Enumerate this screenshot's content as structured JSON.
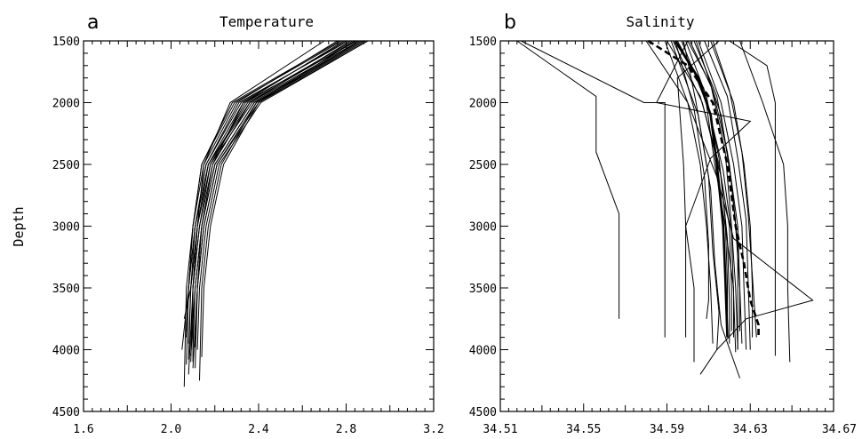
{
  "figure": {
    "ylabel": "Depth"
  },
  "chart_data": [
    {
      "type": "line",
      "panel_letter": "a",
      "title": "Temperature",
      "xlabel": "",
      "ylabel": "Depth",
      "xlim": [
        1.6,
        3.2
      ],
      "ylim": [
        1500,
        4500
      ],
      "y_inverted": true,
      "grid": false,
      "x_ticks": [
        "1.6",
        "2.0",
        "2.4",
        "2.8",
        "3.2"
      ],
      "y_ticks": [
        "1500",
        "2000",
        "2500",
        "3000",
        "3500",
        "4000",
        "4500"
      ],
      "depth": [
        1500,
        2000,
        2500,
        3000,
        3500,
        4000
      ],
      "line_color": "#000000",
      "series": [
        {
          "values": [
            2.88,
            2.38,
            2.2,
            2.14,
            2.11,
            2.09
          ],
          "max_depth": 4050
        },
        {
          "values": [
            2.84,
            2.35,
            2.17,
            2.12,
            2.09,
            2.06
          ],
          "max_depth": 3750
        },
        {
          "values": [
            2.8,
            2.32,
            2.16,
            2.11,
            2.08,
            2.05
          ],
          "max_depth": 4000
        },
        {
          "values": [
            2.86,
            2.4,
            2.21,
            2.15,
            2.12,
            2.1
          ],
          "max_depth": 4150
        },
        {
          "values": [
            2.76,
            2.3,
            2.15,
            2.1,
            2.07,
            2.06
          ],
          "max_depth": 4300
        },
        {
          "values": [
            2.82,
            2.36,
            2.19,
            2.13,
            2.1,
            2.08
          ],
          "max_depth": 4200
        },
        {
          "values": [
            2.9,
            2.41,
            2.22,
            2.16,
            2.13,
            2.12
          ],
          "max_depth": 4000
        },
        {
          "values": [
            2.78,
            2.29,
            2.14,
            2.1,
            2.08,
            2.07
          ],
          "max_depth": 3900
        },
        {
          "values": [
            2.87,
            2.37,
            2.18,
            2.12,
            2.1,
            2.1
          ],
          "max_depth": 4100
        },
        {
          "values": [
            2.85,
            2.33,
            2.17,
            2.11,
            2.09,
            2.08
          ],
          "max_depth": 3950
        },
        {
          "values": [
            2.7,
            2.27,
            2.15,
            2.12,
            2.1,
            2.09
          ],
          "max_depth": 4050
        },
        {
          "values": [
            2.89,
            2.39,
            2.23,
            2.17,
            2.14,
            2.13
          ],
          "max_depth": 4250
        },
        {
          "values": [
            2.83,
            2.34,
            2.18,
            2.13,
            2.1,
            2.09
          ],
          "max_depth": 4100
        },
        {
          "values": [
            2.81,
            2.31,
            2.16,
            2.11,
            2.08,
            2.07
          ],
          "max_depth": 3850
        },
        {
          "values": [
            2.88,
            2.38,
            2.2,
            2.14,
            2.12,
            2.11
          ],
          "max_depth": 4150
        },
        {
          "values": [
            2.79,
            2.33,
            2.19,
            2.14,
            2.11,
            2.1
          ],
          "max_depth": 4000
        },
        {
          "values": [
            2.86,
            2.36,
            2.17,
            2.12,
            2.09,
            2.08
          ],
          "max_depth": 4080
        },
        {
          "values": [
            2.84,
            2.39,
            2.21,
            2.15,
            2.12,
            2.11
          ],
          "max_depth": 3980
        },
        {
          "values": [
            2.77,
            2.28,
            2.14,
            2.1,
            2.08,
            2.07
          ],
          "max_depth": 4120
        },
        {
          "values": [
            2.9,
            2.4,
            2.24,
            2.18,
            2.15,
            2.14
          ],
          "max_depth": 4060
        }
      ]
    },
    {
      "type": "line",
      "panel_letter": "b",
      "title": "Salinity",
      "xlabel": "",
      "ylabel": "",
      "xlim": [
        34.51,
        34.67
      ],
      "ylim": [
        1500,
        4500
      ],
      "y_inverted": true,
      "grid": false,
      "x_ticks": [
        "34.51",
        "34.55",
        "34.59",
        "34.63",
        "34.67"
      ],
      "y_ticks": [
        "1500",
        "2000",
        "2500",
        "3000",
        "3500",
        "4000",
        "4500"
      ],
      "line_color": "#000000",
      "series": [
        {
          "points": [
            [
              34.518,
              1500
            ],
            [
              34.556,
              1950
            ],
            [
              34.556,
              2400
            ],
            [
              34.567,
              2900
            ],
            [
              34.567,
              3750
            ]
          ]
        },
        {
          "points": [
            [
              34.52,
              1500
            ],
            [
              34.579,
              2000
            ],
            [
              34.589,
              2000
            ],
            [
              34.589,
              3500
            ],
            [
              34.589,
              3900
            ]
          ]
        },
        {
          "points": [
            [
              34.6,
              1500
            ],
            [
              34.585,
              2000
            ],
            [
              34.63,
              2150
            ],
            [
              34.611,
              2450
            ],
            [
              34.599,
              3000
            ],
            [
              34.603,
              3500
            ],
            [
              34.603,
              4100
            ]
          ]
        },
        {
          "points": [
            [
              34.595,
              1500
            ],
            [
              34.608,
              1900
            ],
            [
              34.613,
              2500
            ],
            [
              34.618,
              3000
            ],
            [
              34.622,
              3500
            ],
            [
              34.622,
              3900
            ]
          ]
        },
        {
          "points": [
            [
              34.6,
              1500
            ],
            [
              34.611,
              1850
            ],
            [
              34.618,
              2400
            ],
            [
              34.621,
              3000
            ],
            [
              34.623,
              3500
            ],
            [
              34.624,
              4000
            ]
          ]
        },
        {
          "points": [
            [
              34.603,
              1500
            ],
            [
              34.614,
              1950
            ],
            [
              34.62,
              2500
            ],
            [
              34.623,
              3000
            ],
            [
              34.625,
              3500
            ],
            [
              34.626,
              3950
            ]
          ]
        },
        {
          "points": [
            [
              34.59,
              1500
            ],
            [
              34.606,
              1950
            ],
            [
              34.615,
              2500
            ],
            [
              34.62,
              3000
            ],
            [
              34.621,
              3500
            ],
            [
              34.621,
              3850
            ]
          ]
        },
        {
          "points": [
            [
              34.593,
              1500
            ],
            [
              34.607,
              2000
            ],
            [
              34.616,
              2600
            ],
            [
              34.619,
              3100
            ],
            [
              34.62,
              3600
            ],
            [
              34.62,
              3950
            ]
          ]
        },
        {
          "points": [
            [
              34.62,
              1500
            ],
            [
              34.638,
              1700
            ],
            [
              34.642,
              2000
            ],
            [
              34.642,
              3000
            ],
            [
              34.642,
              3700
            ],
            [
              34.642,
              4050
            ]
          ]
        },
        {
          "points": [
            [
              34.625,
              1500
            ],
            [
              34.636,
              2000
            ],
            [
              34.646,
              2500
            ],
            [
              34.648,
              3000
            ],
            [
              34.648,
              3500
            ],
            [
              34.649,
              4100
            ]
          ]
        },
        {
          "points": [
            [
              34.58,
              1500
            ],
            [
              34.6,
              2000
            ],
            [
              34.614,
              2600
            ],
            [
              34.622,
              3100
            ],
            [
              34.66,
              3600
            ],
            [
              34.628,
              3750
            ],
            [
              34.614,
              4000
            ],
            [
              34.606,
              4200
            ]
          ]
        },
        {
          "points": [
            [
              34.615,
              1500
            ],
            [
              34.595,
              1800
            ],
            [
              34.598,
              2500
            ],
            [
              34.599,
              3000
            ],
            [
              34.599,
              3900
            ]
          ]
        },
        {
          "points": [
            [
              34.598,
              1500
            ],
            [
              34.604,
              2000
            ],
            [
              34.61,
              2600
            ],
            [
              34.612,
              3200
            ],
            [
              34.615,
              3700
            ],
            [
              34.614,
              4000
            ]
          ]
        },
        {
          "points": [
            [
              34.605,
              1500
            ],
            [
              34.616,
              2000
            ],
            [
              34.622,
              2500
            ],
            [
              34.626,
              3000
            ],
            [
              34.627,
              3500
            ],
            [
              34.628,
              4000
            ]
          ]
        },
        {
          "points": [
            [
              34.592,
              1500
            ],
            [
              34.605,
              2100
            ],
            [
              34.611,
              2700
            ],
            [
              34.613,
              3300
            ],
            [
              34.616,
              3800
            ],
            [
              34.625,
              4230
            ]
          ]
        },
        {
          "points": [
            [
              34.601,
              1500
            ],
            [
              34.612,
              1900
            ],
            [
              34.619,
              2400
            ],
            [
              34.624,
              3000
            ],
            [
              34.625,
              3500
            ],
            [
              34.625,
              3850
            ]
          ]
        },
        {
          "points": [
            [
              34.597,
              1500
            ],
            [
              34.61,
              2050
            ],
            [
              34.617,
              2550
            ],
            [
              34.621,
              3050
            ],
            [
              34.622,
              3550
            ],
            [
              34.623,
              4020
            ]
          ]
        },
        {
          "points": [
            [
              34.608,
              1500
            ],
            [
              34.619,
              1950
            ],
            [
              34.624,
              2450
            ],
            [
              34.628,
              2950
            ],
            [
              34.629,
              3450
            ],
            [
              34.63,
              4000
            ]
          ]
        },
        {
          "points": [
            [
              34.594,
              1500
            ],
            [
              34.603,
              2050
            ],
            [
              34.608,
              2600
            ],
            [
              34.61,
              3150
            ],
            [
              34.61,
              3600
            ],
            [
              34.609,
              3750
            ]
          ]
        },
        {
          "points": [
            [
              34.611,
              1500
            ],
            [
              34.622,
              2000
            ],
            [
              34.627,
              2500
            ],
            [
              34.63,
              3000
            ],
            [
              34.631,
              3500
            ],
            [
              34.631,
              3900
            ]
          ]
        },
        {
          "points": [
            [
              34.604,
              1500
            ],
            [
              34.616,
              2100
            ],
            [
              34.621,
              2650
            ],
            [
              34.624,
              3150
            ],
            [
              34.624,
              3650
            ],
            [
              34.624,
              4000
            ]
          ]
        },
        {
          "points": [
            [
              34.589,
              1500
            ],
            [
              34.6,
              2000
            ],
            [
              34.606,
              2500
            ],
            [
              34.609,
              3000
            ],
            [
              34.611,
              3500
            ],
            [
              34.612,
              3950
            ]
          ]
        },
        {
          "points": [
            [
              34.612,
              1500
            ],
            [
              34.62,
              1900
            ],
            [
              34.626,
              2400
            ],
            [
              34.629,
              2900
            ],
            [
              34.631,
              3400
            ],
            [
              34.633,
              3900
            ]
          ]
        },
        {
          "points": [
            [
              34.599,
              1500
            ],
            [
              34.609,
              1950
            ],
            [
              34.615,
              2450
            ],
            [
              34.618,
              2950
            ],
            [
              34.619,
              3450
            ],
            [
              34.619,
              3900
            ]
          ]
        }
      ],
      "mean_series": {
        "style": "dashed",
        "points": [
          [
            34.581,
            1500
          ],
          [
            34.6,
            1700
          ],
          [
            34.612,
            2000
          ],
          [
            34.619,
            2500
          ],
          [
            34.623,
            3000
          ],
          [
            34.627,
            3300
          ],
          [
            34.63,
            3600
          ],
          [
            34.634,
            3800
          ],
          [
            34.634,
            3900
          ]
        ]
      },
      "bold_series": {
        "points": [
          [
            34.594,
            1500
          ],
          [
            34.605,
            1800
          ],
          [
            34.611,
            2100
          ],
          [
            34.614,
            2500
          ],
          [
            34.617,
            3000
          ],
          [
            34.618,
            3400
          ],
          [
            34.619,
            3900
          ]
        ]
      }
    }
  ]
}
